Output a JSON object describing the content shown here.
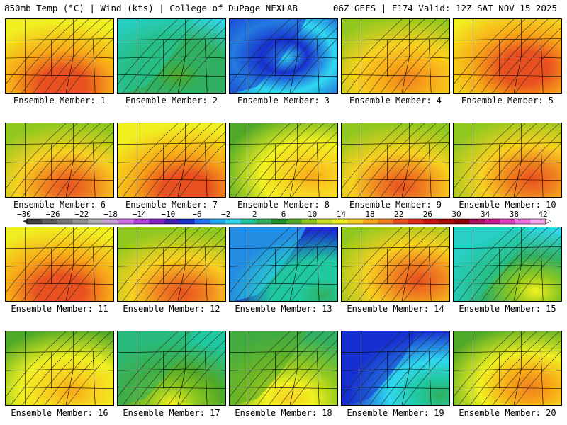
{
  "header": {
    "left": "850mb Temp (°C) | Wind (kts) | College of DuPage NEXLAB",
    "right": "06Z GEFS | F174 Valid: 12Z SAT NOV 15 2025"
  },
  "label_prefix": "Ensemble Member: ",
  "members": [
    {
      "n": "1",
      "base": 7,
      "hot": 3,
      "hx": 0.52,
      "hy": 0.88,
      "sweep": 0.4
    },
    {
      "n": "2",
      "base": 2,
      "hot": 1,
      "hx": 0.55,
      "hy": 0.75,
      "sweep": 1.0
    },
    {
      "n": "3",
      "base": 0,
      "hot": 0,
      "hx": 0.5,
      "hy": 0.5,
      "sweep": 1.2
    },
    {
      "n": "4",
      "base": 6,
      "hot": 2,
      "hx": 0.6,
      "hy": 0.8,
      "sweep": 0.3
    },
    {
      "n": "5",
      "base": 7,
      "hot": 3,
      "hx": 0.65,
      "hy": 0.65,
      "sweep": 0.2
    },
    {
      "n": "6",
      "base": 6,
      "hot": 3,
      "hx": 0.58,
      "hy": 0.85,
      "sweep": 0.3
    },
    {
      "n": "7",
      "base": 7,
      "hot": 3,
      "hx": 0.62,
      "hy": 0.88,
      "sweep": 0.3
    },
    {
      "n": "8",
      "base": 5,
      "hot": 2,
      "hx": 0.75,
      "hy": 0.7,
      "sweep": 0.5
    },
    {
      "n": "9",
      "base": 6,
      "hot": 3,
      "hx": 0.55,
      "hy": 0.85,
      "sweep": 0.3
    },
    {
      "n": "10",
      "base": 6,
      "hot": 3,
      "hx": 0.72,
      "hy": 0.75,
      "sweep": 0.4
    },
    {
      "n": "11",
      "base": 7,
      "hot": 3,
      "hx": 0.5,
      "hy": 0.85,
      "sweep": 0.3
    },
    {
      "n": "12",
      "base": 6,
      "hot": 3,
      "hx": 0.6,
      "hy": 0.88,
      "sweep": 0.3
    },
    {
      "n": "13",
      "base": 1,
      "hot": 1,
      "hx": 0.85,
      "hy": 0.9,
      "sweep": 1.4
    },
    {
      "n": "14",
      "base": 6,
      "hot": 3,
      "hx": 0.7,
      "hy": 0.7,
      "sweep": 0.4
    },
    {
      "n": "15",
      "base": 2,
      "hot": 3,
      "hx": 0.75,
      "hy": 0.85,
      "sweep": 1.1
    },
    {
      "n": "16",
      "base": 5,
      "hot": 2,
      "hx": 0.6,
      "hy": 0.8,
      "sweep": 0.5
    },
    {
      "n": "17",
      "base": 3,
      "hot": 2,
      "hx": 0.5,
      "hy": 0.95,
      "sweep": 1.3
    },
    {
      "n": "18",
      "base": 4,
      "hot": 2,
      "hx": 0.55,
      "hy": 0.9,
      "sweep": 0.9
    },
    {
      "n": "19",
      "base": 0,
      "hot": 2,
      "hx": 0.9,
      "hy": 0.85,
      "sweep": 1.5
    },
    {
      "n": "20",
      "base": 5,
      "hot": 3,
      "hx": 0.7,
      "hy": 0.75,
      "sweep": 0.6
    }
  ],
  "scale": {
    "ticks": [
      "-30",
      "-26",
      "-22",
      "-18",
      "-14",
      "-10",
      "-6",
      "-2",
      "2",
      "6",
      "10",
      "14",
      "18",
      "22",
      "26",
      "30",
      "34",
      "38",
      "42"
    ],
    "colors": [
      "#404040",
      "#5c5c5c",
      "#787878",
      "#949494",
      "#b0b0b0",
      "#c8a0d8",
      "#d070e8",
      "#b040d8",
      "#8020c0",
      "#4020b0",
      "#1830d0",
      "#2070f0",
      "#20a8f0",
      "#30d8f0",
      "#20c8a0",
      "#30b060",
      "#20902a",
      "#50a828",
      "#90c820",
      "#c8e020",
      "#f0f020",
      "#f8d020",
      "#f8a818",
      "#f08020",
      "#e85020",
      "#e02818",
      "#c81010",
      "#a80808",
      "#880000",
      "#a81060",
      "#c81890",
      "#e040c0",
      "#f070e0",
      "#f8a8f0"
    ]
  },
  "temp_colors": [
    "#1830d0",
    "#30d8f0",
    "#20c8a0",
    "#30b060",
    "#50a828",
    "#90c820",
    "#f0f020",
    "#f8d020",
    "#f8a818",
    "#f08020",
    "#e85020"
  ]
}
